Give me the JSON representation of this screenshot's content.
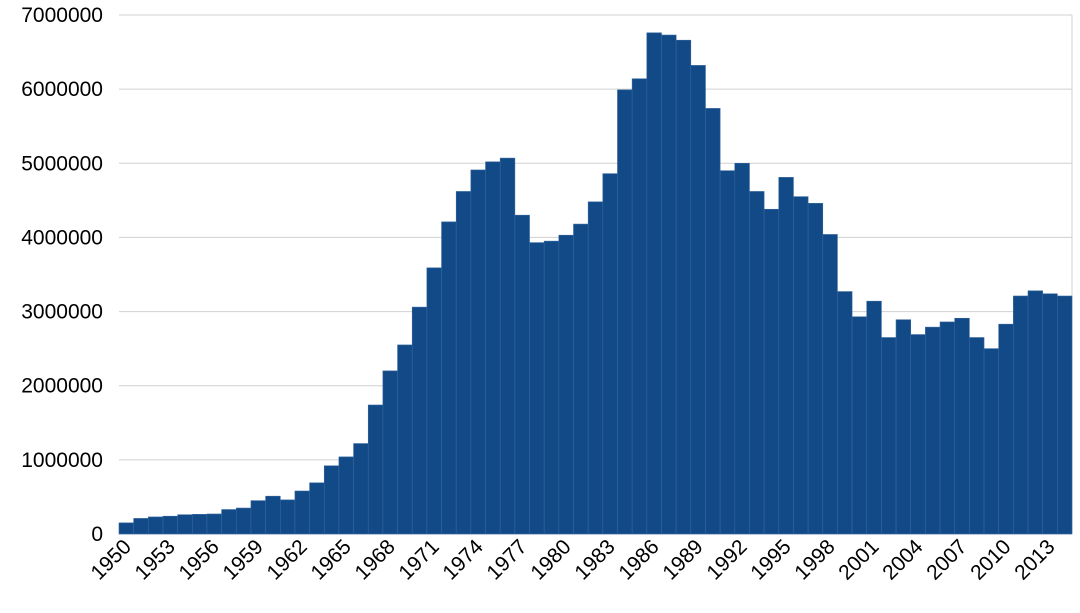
{
  "chart_data": {
    "type": "bar",
    "categories": [
      "1950",
      null,
      null,
      "1953",
      null,
      null,
      "1956",
      null,
      null,
      "1959",
      null,
      null,
      "1962",
      null,
      null,
      "1965",
      null,
      null,
      "1968",
      null,
      null,
      "1971",
      null,
      null,
      "1974",
      null,
      null,
      "1977",
      null,
      null,
      "1980",
      null,
      null,
      "1983",
      null,
      null,
      "1986",
      null,
      null,
      "1989",
      null,
      null,
      "1992",
      null,
      null,
      "1995",
      null,
      null,
      "1998",
      null,
      null,
      "2001",
      null,
      null,
      "2004",
      null,
      null,
      "2007",
      null,
      null,
      "2010",
      null,
      null,
      "2013",
      null
    ],
    "values": [
      150000,
      210000,
      230000,
      240000,
      260000,
      265000,
      270000,
      330000,
      350000,
      450000,
      510000,
      460000,
      580000,
      690000,
      920000,
      1040000,
      1220000,
      1740000,
      2200000,
      2550000,
      3060000,
      3590000,
      4210000,
      4620000,
      4910000,
      5020000,
      5070000,
      4300000,
      3930000,
      3950000,
      4030000,
      4180000,
      4480000,
      4860000,
      5990000,
      6140000,
      6760000,
      6730000,
      6660000,
      6320000,
      5740000,
      4900000,
      5000000,
      4620000,
      4380000,
      4810000,
      4550000,
      4460000,
      4040000,
      3270000,
      2930000,
      3140000,
      2650000,
      2890000,
      2690000,
      2790000,
      2860000,
      2910000,
      2650000,
      2500000,
      2830000,
      3210000,
      3280000,
      3240000,
      3210000
    ],
    "color": "#124a87",
    "ylim": [
      0,
      7000000
    ],
    "yticks": [
      0,
      1000000,
      2000000,
      3000000,
      4000000,
      5000000,
      6000000,
      7000000
    ],
    "grid": true
  }
}
